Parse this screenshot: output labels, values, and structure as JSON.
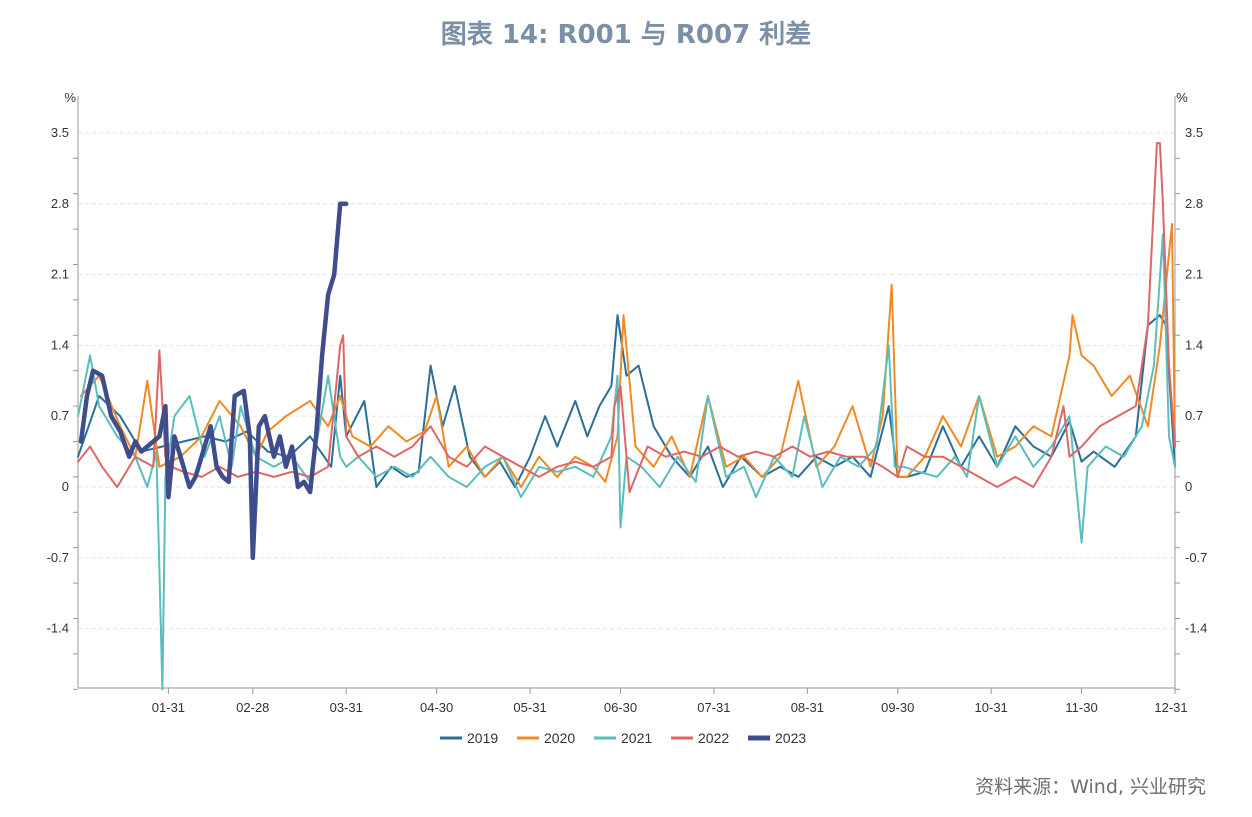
{
  "title": "图表 14: R001 与 R007 利差",
  "source": "资料来源：Wind, 兴业研究",
  "chart_data": {
    "type": "line",
    "y_unit_left": "%",
    "y_unit_right": "%",
    "ylim": [
      -2.0,
      3.5
    ],
    "y_ticks": [
      3.5,
      2.8,
      2.1,
      1.4,
      0.7,
      0,
      -0.7,
      -1.4
    ],
    "y_tick_labels": [
      "3.5",
      "2.8",
      "2.1",
      "1.4",
      "0.7",
      "0",
      "-0.7",
      "-1.4"
    ],
    "x_tick_labels": [
      "01-31",
      "02-28",
      "03-31",
      "04-30",
      "05-31",
      "06-30",
      "07-31",
      "08-31",
      "09-30",
      "10-31",
      "11-30",
      "12-31"
    ],
    "x_tick_days": [
      31,
      59,
      90,
      120,
      151,
      181,
      212,
      243,
      273,
      304,
      334,
      365
    ],
    "x_range_days": [
      1,
      365
    ],
    "grid": "horizontal dashed",
    "legend_position": "bottom",
    "series": [
      {
        "name": "2019",
        "color": "#2a6f97",
        "width": 2,
        "x": [
          1,
          8,
          15,
          22,
          29,
          36,
          43,
          50,
          57,
          64,
          71,
          78,
          85,
          88,
          90,
          96,
          100,
          105,
          110,
          114,
          118,
          122,
          126,
          131,
          136,
          141,
          146,
          151,
          156,
          160,
          166,
          170,
          174,
          178,
          180,
          183,
          187,
          192,
          198,
          204,
          210,
          215,
          221,
          228,
          234,
          240,
          246,
          252,
          258,
          264,
          270,
          273,
          276,
          282,
          288,
          294,
          300,
          306,
          312,
          318,
          324,
          330,
          334,
          338,
          345,
          352,
          356,
          360,
          362,
          365
        ],
        "y": [
          0.3,
          0.9,
          0.7,
          0.35,
          0.4,
          0.45,
          0.5,
          0.45,
          0.55,
          0.35,
          0.3,
          0.5,
          0.2,
          1.1,
          0.5,
          0.85,
          0,
          0.2,
          0.1,
          0.15,
          1.2,
          0.6,
          1.0,
          0.3,
          0.1,
          0.25,
          0.0,
          0.3,
          0.7,
          0.4,
          0.85,
          0.5,
          0.8,
          1.0,
          1.7,
          1.1,
          1.2,
          0.6,
          0.3,
          0.1,
          0.4,
          0.0,
          0.3,
          0.1,
          0.2,
          0.1,
          0.3,
          0.2,
          0.3,
          0.1,
          0.8,
          0.1,
          0.1,
          0.15,
          0.6,
          0.2,
          0.5,
          0.2,
          0.6,
          0.4,
          0.3,
          0.65,
          0.25,
          0.35,
          0.2,
          0.5,
          1.6,
          1.7,
          1.6,
          0.2
        ]
      },
      {
        "name": "2020",
        "color": "#f08a24",
        "width": 2,
        "x": [
          2,
          8,
          15,
          20,
          24,
          28,
          35,
          42,
          48,
          55,
          60,
          64,
          70,
          78,
          84,
          88,
          92,
          98,
          104,
          110,
          116,
          120,
          124,
          130,
          136,
          142,
          148,
          154,
          160,
          166,
          172,
          176,
          180,
          182,
          186,
          192,
          198,
          204,
          210,
          216,
          222,
          228,
          234,
          240,
          246,
          252,
          258,
          264,
          268,
          271,
          273,
          276,
          282,
          288,
          294,
          300,
          306,
          312,
          318,
          324,
          330,
          331,
          334,
          338,
          344,
          350,
          356,
          360,
          364,
          365
        ],
        "y": [
          0.9,
          1.1,
          0.6,
          0.3,
          1.05,
          0.2,
          0.3,
          0.5,
          0.85,
          0.6,
          0.3,
          0.55,
          0.7,
          0.85,
          0.6,
          0.9,
          0.5,
          0.4,
          0.6,
          0.45,
          0.55,
          0.9,
          0.2,
          0.4,
          0.1,
          0.3,
          0.0,
          0.3,
          0.1,
          0.3,
          0.2,
          0.05,
          0.5,
          1.7,
          0.4,
          0.2,
          0.5,
          0.1,
          0.9,
          0.2,
          0.3,
          0.1,
          0.3,
          1.05,
          0.2,
          0.4,
          0.8,
          0.2,
          0.7,
          2.0,
          0.1,
          0.1,
          0.3,
          0.7,
          0.4,
          0.9,
          0.3,
          0.4,
          0.6,
          0.5,
          1.3,
          1.7,
          1.3,
          1.2,
          0.9,
          1.1,
          0.6,
          1.4,
          2.6,
          0.4
        ]
      },
      {
        "name": "2021",
        "color": "#5bbdbc",
        "width": 2,
        "x": [
          1,
          5,
          8,
          14,
          20,
          24,
          27,
          29,
          30,
          33,
          38,
          43,
          48,
          52,
          55,
          60,
          66,
          72,
          78,
          84,
          88,
          90,
          94,
          100,
          106,
          112,
          118,
          124,
          130,
          136,
          142,
          148,
          154,
          160,
          166,
          172,
          178,
          180,
          181,
          183,
          188,
          194,
          200,
          206,
          210,
          216,
          222,
          226,
          232,
          238,
          242,
          248,
          254,
          260,
          266,
          270,
          272,
          275,
          280,
          286,
          292,
          296,
          300,
          306,
          312,
          318,
          324,
          330,
          334,
          336,
          342,
          348,
          354,
          358,
          361,
          363,
          365
        ],
        "y": [
          0.7,
          1.3,
          0.8,
          0.5,
          0.3,
          0.0,
          0.35,
          -2.0,
          0.1,
          0.7,
          0.9,
          0.3,
          0.7,
          0.2,
          0.8,
          0.3,
          0.2,
          0.3,
          0.05,
          1.1,
          0.3,
          0.2,
          0.3,
          0.1,
          0.2,
          0.1,
          0.3,
          0.1,
          0.0,
          0.2,
          0.3,
          -0.1,
          0.2,
          0.15,
          0.2,
          0.1,
          0.5,
          1.1,
          -0.4,
          0.3,
          0.2,
          0.0,
          0.3,
          0.05,
          0.9,
          0.1,
          0.2,
          -0.1,
          0.3,
          0.1,
          0.7,
          0.0,
          0.3,
          0.2,
          0.4,
          1.4,
          0.2,
          0.2,
          0.15,
          0.1,
          0.3,
          0.1,
          0.9,
          0.2,
          0.5,
          0.2,
          0.4,
          0.7,
          -0.55,
          0.2,
          0.4,
          0.3,
          0.6,
          1.2,
          2.5,
          0.5,
          0.2
        ]
      },
      {
        "name": "2022",
        "color": "#e06666",
        "width": 2,
        "x": [
          1,
          5,
          9,
          14,
          20,
          26,
          28,
          30,
          32,
          36,
          42,
          48,
          54,
          60,
          66,
          72,
          78,
          84,
          88,
          89,
          90,
          94,
          100,
          106,
          112,
          118,
          124,
          130,
          136,
          142,
          148,
          154,
          160,
          166,
          172,
          178,
          179,
          181,
          184,
          190,
          196,
          202,
          208,
          214,
          220,
          226,
          232,
          238,
          244,
          250,
          256,
          262,
          268,
          273,
          276,
          282,
          288,
          294,
          300,
          306,
          312,
          318,
          324,
          328,
          330,
          334,
          340,
          346,
          352,
          356,
          359,
          360,
          361,
          363,
          365
        ],
        "y": [
          0.25,
          0.4,
          0.2,
          0.0,
          0.3,
          0.2,
          1.35,
          0.3,
          0.2,
          0.15,
          0.1,
          0.2,
          0.1,
          0.15,
          0.1,
          0.15,
          0.1,
          0.2,
          1.4,
          1.5,
          0.5,
          0.3,
          0.4,
          0.3,
          0.4,
          0.6,
          0.3,
          0.2,
          0.4,
          0.3,
          0.2,
          0.1,
          0.2,
          0.25,
          0.2,
          0.3,
          0.8,
          1.0,
          -0.05,
          0.4,
          0.3,
          0.35,
          0.3,
          0.4,
          0.3,
          0.35,
          0.3,
          0.4,
          0.3,
          0.35,
          0.3,
          0.3,
          0.2,
          0.1,
          0.4,
          0.3,
          0.3,
          0.2,
          0.1,
          0.0,
          0.1,
          0.0,
          0.3,
          0.8,
          0.3,
          0.4,
          0.6,
          0.7,
          0.8,
          1.6,
          3.4,
          3.4,
          2.8,
          1.2,
          0.4
        ]
      },
      {
        "name": "2023",
        "color": "#3f4d8c",
        "width": 4.5,
        "x": [
          2,
          4,
          6,
          9,
          12,
          15,
          18,
          20,
          22,
          24,
          26,
          28,
          30,
          31,
          33,
          35,
          38,
          40,
          42,
          45,
          47,
          49,
          51,
          53,
          56,
          58,
          59,
          61,
          63,
          66,
          68,
          70,
          72,
          74,
          76,
          78,
          80,
          82,
          84,
          86,
          88,
          89,
          90
        ],
        "y": [
          0.45,
          0.9,
          1.15,
          1.1,
          0.7,
          0.55,
          0.3,
          0.45,
          0.35,
          0.4,
          0.45,
          0.5,
          0.8,
          -0.1,
          0.5,
          0.3,
          0.0,
          0.1,
          0.3,
          0.6,
          0.2,
          0.1,
          0.05,
          0.9,
          0.95,
          0.5,
          -0.7,
          0.6,
          0.7,
          0.3,
          0.5,
          0.2,
          0.4,
          0.0,
          0.05,
          -0.05,
          0.5,
          1.3,
          1.9,
          2.1,
          2.8,
          2.8,
          2.8
        ]
      }
    ]
  }
}
